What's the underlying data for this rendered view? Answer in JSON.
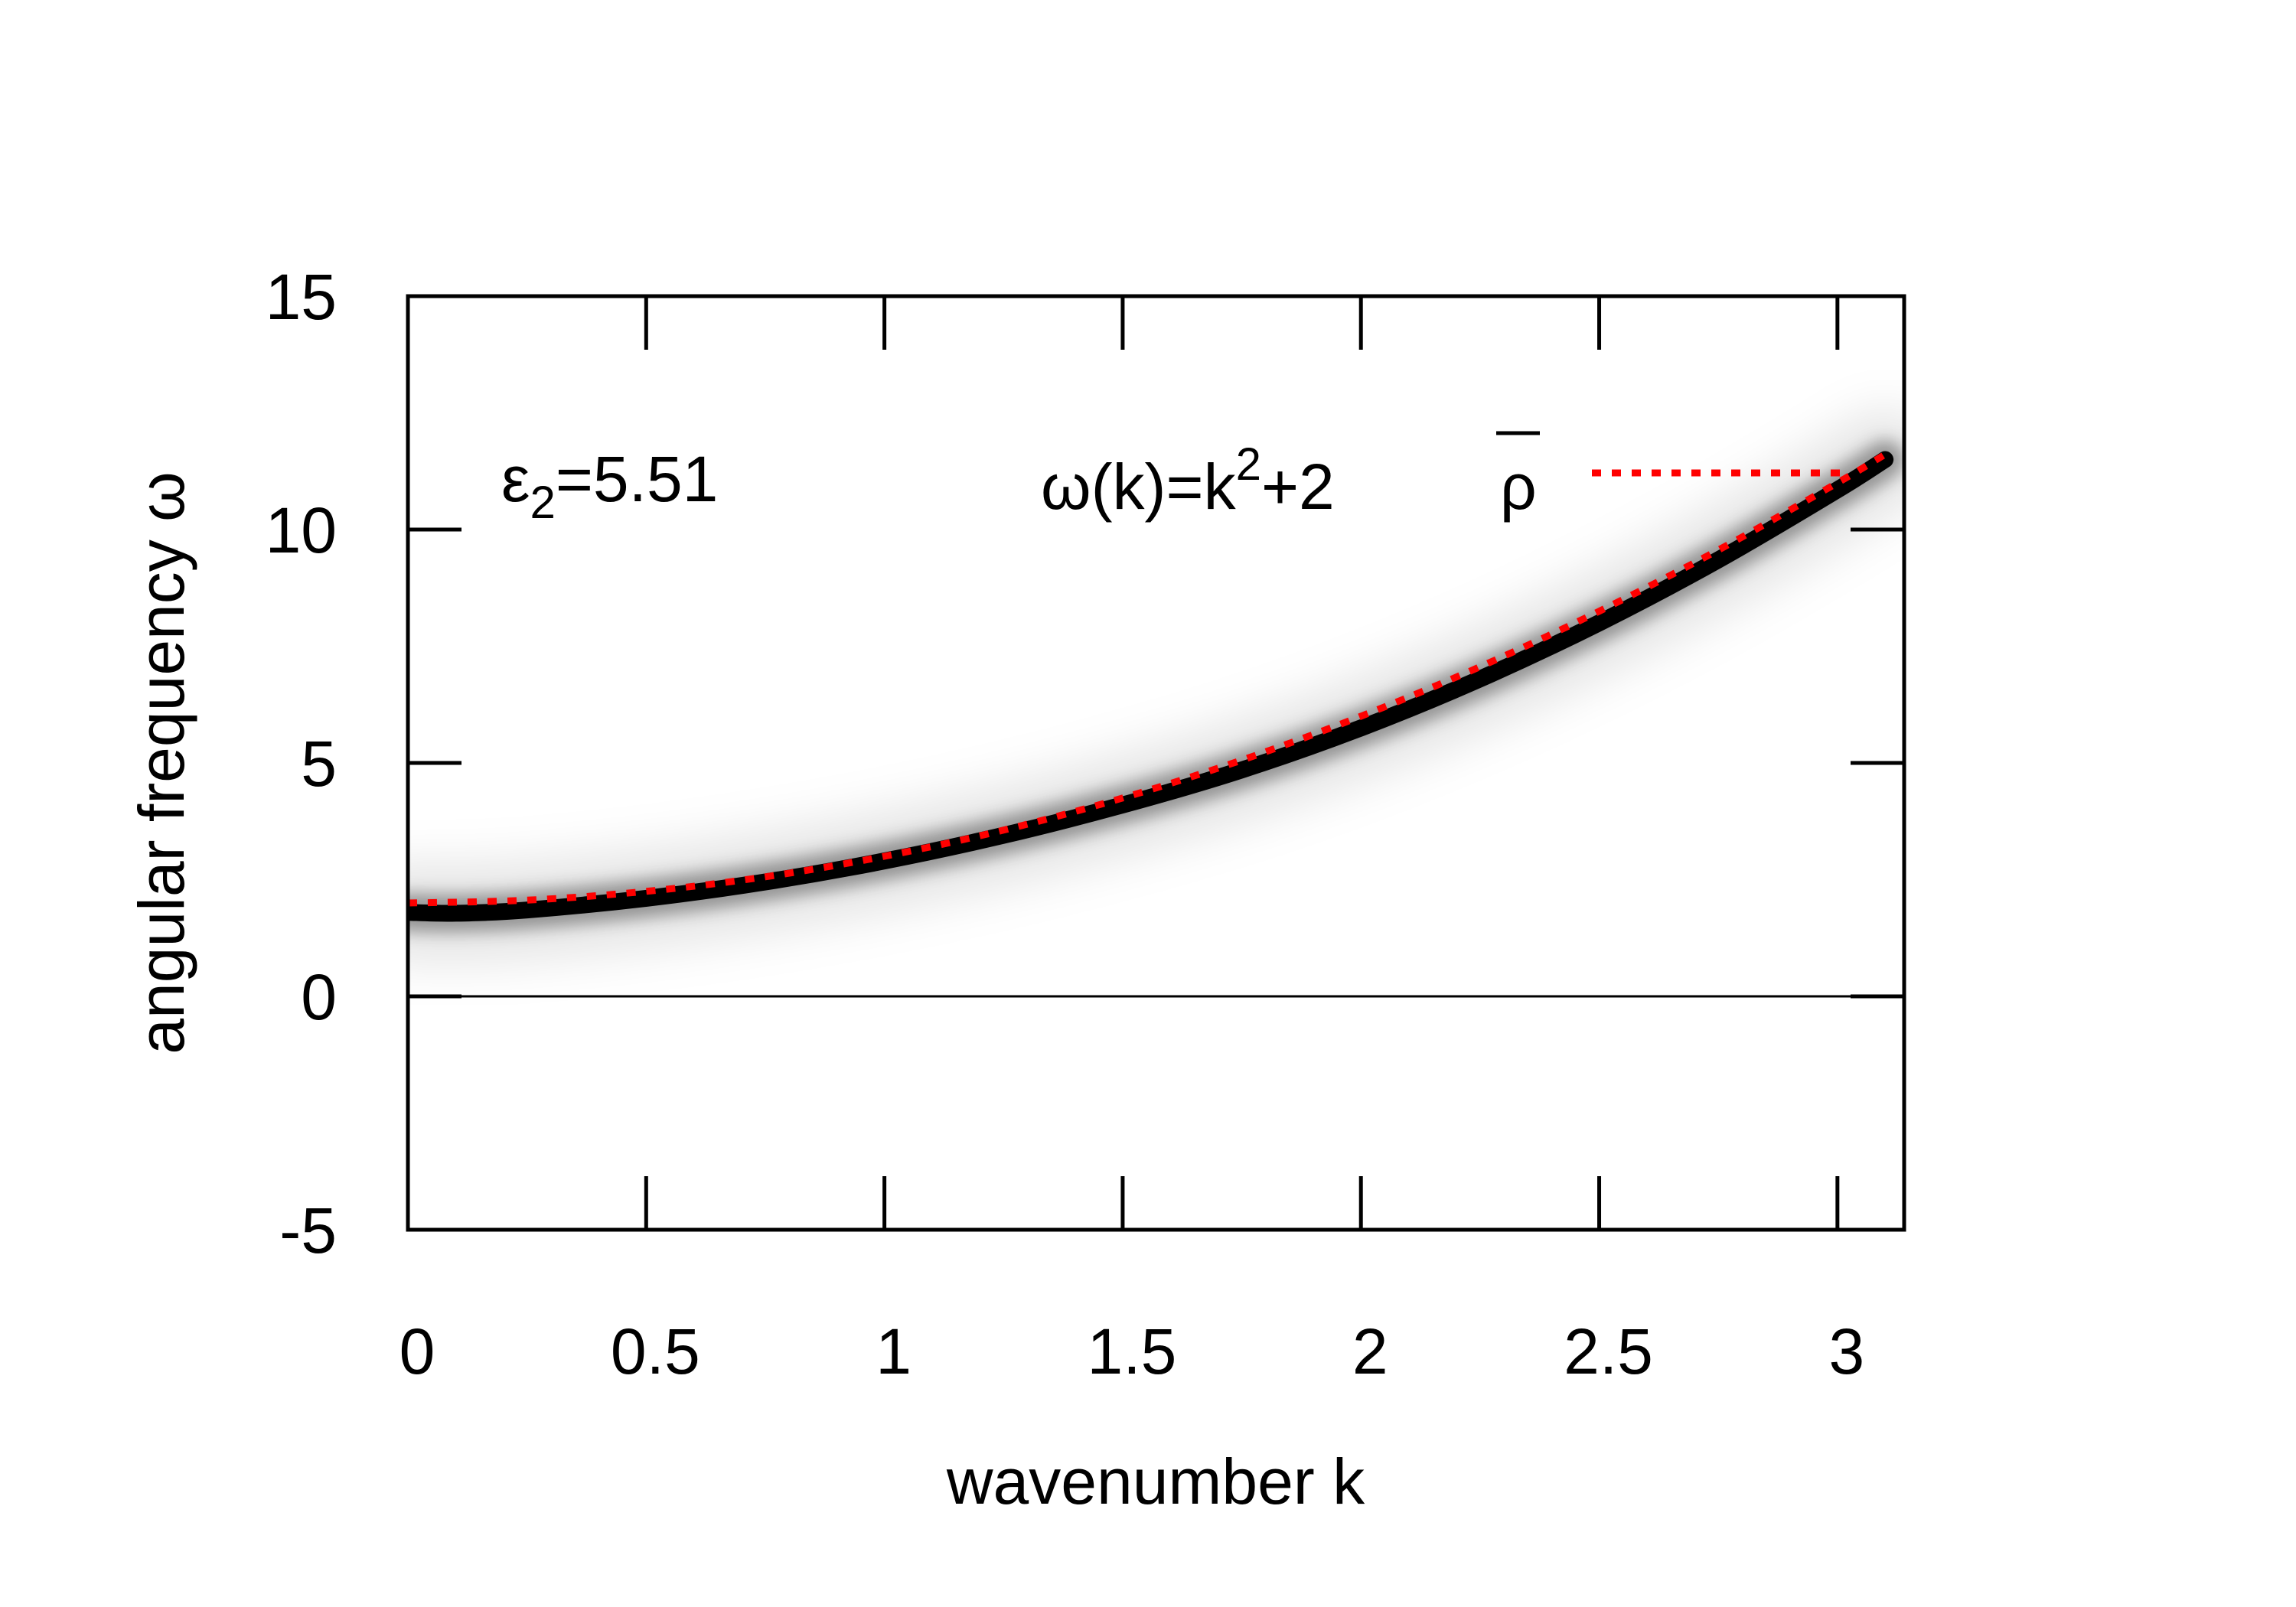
{
  "chart_data": {
    "type": "heatmap",
    "xlabel": "wavenumber k",
    "ylabel": "angular frequency ω",
    "xlim": [
      0,
      3.14
    ],
    "ylim": [
      -5,
      15
    ],
    "x_ticks": [
      0,
      0.5,
      1,
      1.5,
      2,
      2.5,
      3
    ],
    "x_tick_labels": [
      "0",
      "0.5",
      "1",
      "1.5",
      "2",
      "2.5",
      "3"
    ],
    "y_ticks": [
      -5,
      0,
      5,
      10,
      15
    ],
    "y_tick_labels": [
      "-5",
      "0",
      "5",
      "10",
      "15"
    ],
    "zero_line": true,
    "grid": false,
    "annotation": {
      "epsilon_symbol": "ε",
      "epsilon_subscript": "2",
      "epsilon_value": "=5.51"
    },
    "legend": {
      "position": "top-right",
      "label_part1": "ω(k)=k",
      "label_sup": "2",
      "label_part2": "+2 ",
      "label_rho": "ρ"
    },
    "fit_series": {
      "name": "ω(k)=k²+2ρ̄",
      "color": "#ff0000",
      "style": "dotted",
      "x": [
        0,
        0.25,
        0.5,
        0.75,
        1.0,
        1.25,
        1.5,
        1.75,
        2.0,
        2.25,
        2.5,
        2.75,
        3.0,
        3.1
      ],
      "y": [
        2.0,
        2.06,
        2.25,
        2.56,
        3.0,
        3.56,
        4.25,
        5.06,
        6.0,
        7.06,
        8.25,
        9.56,
        11.0,
        11.61
      ]
    },
    "heatmap_ridge": {
      "colormap": "white-to-black",
      "x": [
        0,
        0.1,
        0.25,
        0.5,
        0.75,
        1.0,
        1.25,
        1.5,
        1.75,
        2.0,
        2.25,
        2.5,
        2.75,
        3.0,
        3.1
      ],
      "y": [
        1.8,
        1.78,
        1.85,
        2.1,
        2.45,
        2.9,
        3.45,
        4.1,
        4.85,
        5.75,
        6.8,
        8.0,
        9.35,
        10.85,
        11.5
      ]
    }
  }
}
